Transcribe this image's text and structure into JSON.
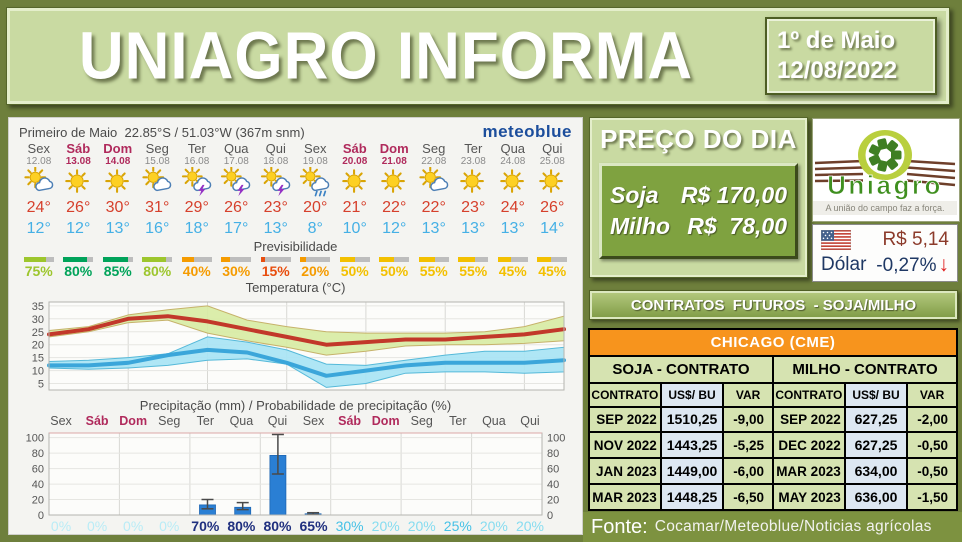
{
  "header": {
    "title": "UNIAGRO INFORMA",
    "date_line1": "1º de Maio",
    "date_line2": "12/08/2022"
  },
  "weather": {
    "location": "Primeiro de Maio",
    "coords": "22.85°S / 51.03°W (367m snm)",
    "brand": "meteoblue",
    "predictability_label": "Previsibilidade",
    "temp_chart_title": "Temperatura (°C)",
    "precip_chart_title": "Precipitação (mm) / Probabilidade de precipitação (%)",
    "days": [
      {
        "name": "Sex",
        "date": "12.08",
        "weekend": false,
        "icon": "sun-cloud",
        "high": "24°",
        "low": "12°",
        "pred_pct": 75,
        "pred_label": "75%",
        "pred_color": "#9dc62d",
        "prob_label": "0%",
        "prob_color": "#b9ecf6",
        "prob_bold": false
      },
      {
        "name": "Sáb",
        "date": "13.08",
        "weekend": true,
        "icon": "sun",
        "high": "26°",
        "low": "12°",
        "pred_pct": 80,
        "pred_label": "80%",
        "pred_color": "#00a35a",
        "prob_label": "0%",
        "prob_color": "#b9ecf6",
        "prob_bold": false
      },
      {
        "name": "Dom",
        "date": "14.08",
        "weekend": true,
        "icon": "sun",
        "high": "30°",
        "low": "13°",
        "pred_pct": 85,
        "pred_label": "85%",
        "pred_color": "#00a35a",
        "prob_label": "0%",
        "prob_color": "#b9ecf6",
        "prob_bold": false
      },
      {
        "name": "Seg",
        "date": "15.08",
        "weekend": false,
        "icon": "sun-cloud",
        "high": "31°",
        "low": "16°",
        "pred_pct": 80,
        "pred_label": "80%",
        "pred_color": "#9dc62d",
        "prob_label": "0%",
        "prob_color": "#b9ecf6",
        "prob_bold": false
      },
      {
        "name": "Ter",
        "date": "16.08",
        "weekend": false,
        "icon": "sun-storm",
        "high": "29°",
        "low": "18°",
        "pred_pct": 40,
        "pred_label": "40%",
        "pred_color": "#f59b00",
        "prob_label": "70%",
        "prob_color": "#20307f",
        "prob_bold": true
      },
      {
        "name": "Qua",
        "date": "17.08",
        "weekend": false,
        "icon": "sun-storm",
        "high": "26°",
        "low": "17°",
        "pred_pct": 30,
        "pred_label": "30%",
        "pred_color": "#f59b00",
        "prob_label": "80%",
        "prob_color": "#20307f",
        "prob_bold": true
      },
      {
        "name": "Qui",
        "date": "18.08",
        "weekend": false,
        "icon": "sun-storm",
        "high": "23°",
        "low": "13°",
        "pred_pct": 15,
        "pred_label": "15%",
        "pred_color": "#e84e0f",
        "prob_label": "80%",
        "prob_color": "#20307f",
        "prob_bold": true
      },
      {
        "name": "Sex",
        "date": "19.08",
        "weekend": false,
        "icon": "sun-rain",
        "high": "20°",
        "low": "8°",
        "pred_pct": 20,
        "pred_label": "20%",
        "pred_color": "#f59b00",
        "prob_label": "65%",
        "prob_color": "#20307f",
        "prob_bold": true
      },
      {
        "name": "Sáb",
        "date": "20.08",
        "weekend": true,
        "icon": "sun",
        "high": "21°",
        "low": "10°",
        "pred_pct": 50,
        "pred_label": "50%",
        "pred_color": "#f3c000",
        "prob_label": "30%",
        "prob_color": "#45c1e6",
        "prob_bold": false
      },
      {
        "name": "Dom",
        "date": "21.08",
        "weekend": true,
        "icon": "sun",
        "high": "22°",
        "low": "12°",
        "pred_pct": 50,
        "pred_label": "50%",
        "pred_color": "#f3c000",
        "prob_label": "20%",
        "prob_color": "#86dcf0",
        "prob_bold": false
      },
      {
        "name": "Seg",
        "date": "22.08",
        "weekend": false,
        "icon": "sun-cloud",
        "high": "22°",
        "low": "13°",
        "pred_pct": 55,
        "pred_label": "55%",
        "pred_color": "#f3c000",
        "prob_label": "20%",
        "prob_color": "#86dcf0",
        "prob_bold": false
      },
      {
        "name": "Ter",
        "date": "23.08",
        "weekend": false,
        "icon": "sun",
        "high": "23°",
        "low": "13°",
        "pred_pct": 55,
        "pred_label": "55%",
        "pred_color": "#f3c000",
        "prob_label": "25%",
        "prob_color": "#45c1e6",
        "prob_bold": false
      },
      {
        "name": "Qua",
        "date": "24.08",
        "weekend": false,
        "icon": "sun",
        "high": "24°",
        "low": "13°",
        "pred_pct": 45,
        "pred_label": "45%",
        "pred_color": "#f3c000",
        "prob_label": "20%",
        "prob_color": "#86dcf0",
        "prob_bold": false
      },
      {
        "name": "Qui",
        "date": "25.08",
        "weekend": false,
        "icon": "sun",
        "high": "26°",
        "low": "14°",
        "pred_pct": 45,
        "pred_label": "45%",
        "pred_color": "#f3c000",
        "prob_label": "20%",
        "prob_color": "#86dcf0",
        "prob_bold": false
      }
    ]
  },
  "chart_data": [
    {
      "type": "line",
      "title": "Temperatura (°C)",
      "categories": [
        "12.08",
        "13.08",
        "14.08",
        "15.08",
        "16.08",
        "17.08",
        "18.08",
        "19.08",
        "20.08",
        "21.08",
        "22.08",
        "23.08",
        "24.08",
        "25.08"
      ],
      "yticks": [
        5,
        10,
        15,
        20,
        25,
        30,
        35
      ],
      "ylim": [
        2.5,
        36.5
      ],
      "grid": true,
      "series": [
        {
          "name": "Temperatura máxima",
          "color": "#c2382a",
          "band_color": "#d8eca4",
          "band_edge": "#c6b26a",
          "values": [
            24,
            26,
            30,
            31,
            29,
            26,
            23,
            20,
            21,
            22,
            22,
            23,
            24,
            26
          ],
          "band_upper": [
            25.5,
            27,
            31.5,
            33.5,
            35,
            29.5,
            27,
            25,
            24.5,
            24.5,
            24.5,
            25,
            27,
            31
          ],
          "band_lower": [
            23,
            25,
            28.5,
            29.5,
            24.5,
            21.5,
            19,
            16,
            17.5,
            19.5,
            20,
            20,
            20.5,
            21.5
          ]
        },
        {
          "name": "Temperatura mínima",
          "color": "#3ba6da",
          "band_color": "#a8e4f4",
          "band_edge": "#55b9d9",
          "values": [
            12,
            12,
            13,
            16,
            18,
            17,
            13,
            8,
            10,
            12,
            13,
            13,
            13,
            14
          ],
          "band_upper": [
            13.5,
            14,
            15,
            16.5,
            23,
            21,
            18,
            12.5,
            12,
            14,
            16,
            17.5,
            17.5,
            19
          ],
          "band_lower": [
            11,
            10.5,
            11,
            12,
            14,
            14.5,
            12.5,
            3.5,
            5,
            9,
            9.5,
            9.5,
            9,
            9.5
          ]
        }
      ]
    },
    {
      "type": "bar",
      "title": "Precipitação (mm) / Probabilidade de precipitação (%)",
      "categories": [
        "Sex",
        "Sáb",
        "Dom",
        "Seg",
        "Ter",
        "Qua",
        "Qui",
        "Sex",
        "Sáb",
        "Dom",
        "Seg",
        "Ter",
        "Qua",
        "Qui"
      ],
      "weekend_flags": [
        false,
        true,
        true,
        false,
        false,
        false,
        false,
        false,
        true,
        true,
        false,
        false,
        false,
        false
      ],
      "values": [
        0,
        0,
        0,
        0,
        13,
        10,
        77,
        1.5,
        0,
        0,
        0,
        0,
        0,
        0
      ],
      "error_low": [
        null,
        null,
        null,
        null,
        8,
        7,
        53,
        0.5,
        null,
        null,
        null,
        null,
        null,
        null
      ],
      "error_high": [
        null,
        null,
        null,
        null,
        20,
        16,
        104,
        3,
        null,
        null,
        null,
        null,
        null,
        null
      ],
      "probabilities": [
        "0%",
        "0%",
        "0%",
        "0%",
        "70%",
        "80%",
        "80%",
        "65%",
        "30%",
        "20%",
        "20%",
        "25%",
        "20%",
        "20%"
      ],
      "bar_color": "#2a7fd4",
      "yticks": [
        0,
        20,
        40,
        60,
        80,
        100
      ],
      "ylim": [
        0,
        106
      ]
    }
  ],
  "price_panel": {
    "title": "PREÇO DO DIA",
    "items": [
      {
        "name": "Soja",
        "value": "R$ 170,00"
      },
      {
        "name": "Milho",
        "value": "R$  78,00"
      }
    ]
  },
  "logo": {
    "brand": "Uniagro",
    "tagline": "A união do campo faz a força."
  },
  "dollar": {
    "value": "R$ 5,14",
    "label": "Dólar",
    "change": "-0,27%",
    "arrow": "↓"
  },
  "futures": {
    "title": "CONTRATOS  FUTUROS  - SOJA/MILHO",
    "exchange": "CHICAGO (CME)",
    "soja_header": "SOJA - CONTRATO",
    "milho_header": "MILHO - CONTRATO",
    "columns": [
      "CONTRATO",
      "US$/ BU",
      "VAR"
    ],
    "soja_rows": [
      [
        "SEP 2022",
        "1510,25",
        "-9,00"
      ],
      [
        "NOV 2022",
        "1443,25",
        "-5,25"
      ],
      [
        "JAN 2023",
        "1449,00",
        "-6,00"
      ],
      [
        "MAR 2023",
        "1448,25",
        "-6,50"
      ]
    ],
    "milho_rows": [
      [
        "SEP 2022",
        "627,25",
        "-2,00"
      ],
      [
        "DEC 2022",
        "627,25",
        "-0,50"
      ],
      [
        "MAR 2023",
        "634,00",
        "-0,50"
      ],
      [
        "MAY 2023",
        "636,00",
        "-1,50"
      ]
    ]
  },
  "footer": {
    "label": "Fonte:",
    "text": "Cocamar/Meteoblue/Noticias agrícolas"
  },
  "colors": {
    "page_bg": "#6e7f3c",
    "panel_green": "#c9daa2",
    "box_green": "#7fa240",
    "exchange_orange": "#f7941d",
    "cell_green": "#d6e3b1",
    "cell_blue": "#dde7f2",
    "max_temp_red": "#c2382a",
    "min_temp_blue": "#3ba6da",
    "precip_bar_blue": "#2a7fd4",
    "footer_bg": "#7d9240"
  }
}
